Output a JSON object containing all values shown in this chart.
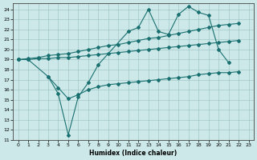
{
  "xlabel": "Humidex (Indice chaleur)",
  "bg_color": "#cce8e8",
  "line_color": "#1a7070",
  "xlim": [
    -0.5,
    23.5
  ],
  "ylim": [
    11,
    24.6
  ],
  "yticks": [
    11,
    12,
    13,
    14,
    15,
    16,
    17,
    18,
    19,
    20,
    21,
    22,
    23,
    24
  ],
  "xticks": [
    0,
    1,
    2,
    3,
    4,
    5,
    6,
    7,
    8,
    9,
    10,
    11,
    12,
    13,
    14,
    15,
    16,
    17,
    18,
    19,
    20,
    21,
    22,
    23
  ],
  "line1_x": [
    0,
    1,
    3,
    4,
    5,
    6,
    7,
    8,
    11,
    12,
    13,
    14,
    15,
    16,
    17,
    18,
    19,
    20,
    21
  ],
  "line1_y": [
    19.0,
    19.0,
    17.3,
    15.6,
    11.5,
    15.3,
    16.7,
    18.5,
    21.8,
    22.2,
    24.0,
    21.8,
    21.5,
    23.5,
    24.3,
    23.7,
    23.4,
    20.0,
    18.7
  ],
  "line2_x": [
    0,
    1,
    2,
    3,
    4,
    5,
    6,
    7,
    8,
    9,
    10,
    11,
    12,
    13,
    14,
    15,
    16,
    17,
    18,
    19,
    20,
    21,
    22
  ],
  "line2_y": [
    19.0,
    19.1,
    19.2,
    19.4,
    19.5,
    19.6,
    19.8,
    20.0,
    20.2,
    20.4,
    20.5,
    20.7,
    20.9,
    21.1,
    21.2,
    21.4,
    21.6,
    21.8,
    22.0,
    22.2,
    22.4,
    22.5,
    22.6
  ],
  "line3_x": [
    0,
    1,
    2,
    3,
    4,
    5,
    6,
    7,
    8,
    9,
    10,
    11,
    12,
    13,
    14,
    15,
    16,
    17,
    18,
    19,
    20,
    21,
    22
  ],
  "line3_y": [
    19.0,
    19.0,
    19.1,
    19.1,
    19.2,
    19.2,
    19.3,
    19.4,
    19.5,
    19.6,
    19.7,
    19.8,
    19.9,
    20.0,
    20.1,
    20.2,
    20.3,
    20.4,
    20.5,
    20.6,
    20.7,
    20.8,
    20.9
  ],
  "line4_x": [
    3,
    4,
    5,
    6,
    7,
    8,
    9,
    10,
    11,
    12,
    13,
    14,
    15,
    16,
    17,
    18,
    19,
    20,
    21,
    22
  ],
  "line4_y": [
    17.3,
    16.2,
    15.1,
    15.5,
    16.0,
    16.3,
    16.5,
    16.6,
    16.7,
    16.8,
    16.9,
    17.0,
    17.1,
    17.2,
    17.3,
    17.5,
    17.6,
    17.7,
    17.7,
    17.8
  ]
}
